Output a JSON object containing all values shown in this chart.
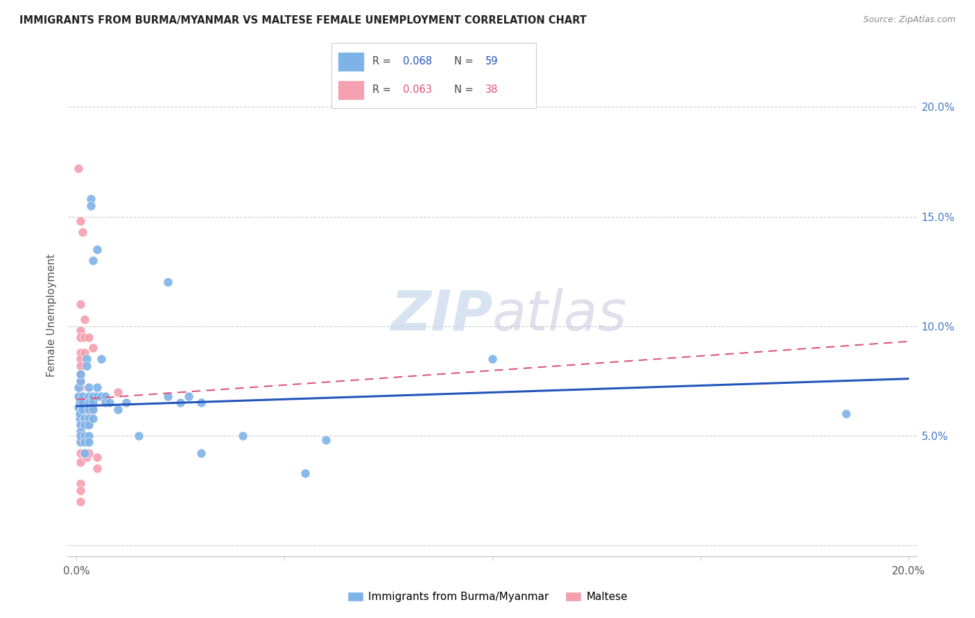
{
  "title": "IMMIGRANTS FROM BURMA/MYANMAR VS MALTESE FEMALE UNEMPLOYMENT CORRELATION CHART",
  "source": "Source: ZipAtlas.com",
  "ylabel": "Female Unemployment",
  "watermark_zip": "ZIP",
  "watermark_atlas": "atlas",
  "blue_color": "#7EB3E8",
  "pink_color": "#F4A0B0",
  "blue_line_color": "#2255BB",
  "pink_line_color": "#DD5577",
  "grid_color": "#CCCCCC",
  "blue_scatter": [
    [
      0.0005,
      0.063
    ],
    [
      0.0005,
      0.068
    ],
    [
      0.0005,
      0.072
    ],
    [
      0.0008,
      0.058
    ],
    [
      0.0008,
      0.065
    ],
    [
      0.0008,
      0.06
    ],
    [
      0.001,
      0.055
    ],
    [
      0.001,
      0.052
    ],
    [
      0.001,
      0.047
    ],
    [
      0.001,
      0.05
    ],
    [
      0.001,
      0.075
    ],
    [
      0.001,
      0.078
    ],
    [
      0.0015,
      0.068
    ],
    [
      0.0015,
      0.065
    ],
    [
      0.0015,
      0.062
    ],
    [
      0.002,
      0.058
    ],
    [
      0.002,
      0.055
    ],
    [
      0.002,
      0.042
    ],
    [
      0.002,
      0.05
    ],
    [
      0.002,
      0.047
    ],
    [
      0.0025,
      0.085
    ],
    [
      0.0025,
      0.082
    ],
    [
      0.003,
      0.072
    ],
    [
      0.003,
      0.068
    ],
    [
      0.003,
      0.065
    ],
    [
      0.003,
      0.062
    ],
    [
      0.003,
      0.058
    ],
    [
      0.003,
      0.055
    ],
    [
      0.003,
      0.05
    ],
    [
      0.003,
      0.047
    ],
    [
      0.0035,
      0.158
    ],
    [
      0.0035,
      0.155
    ],
    [
      0.004,
      0.068
    ],
    [
      0.004,
      0.065
    ],
    [
      0.004,
      0.062
    ],
    [
      0.004,
      0.058
    ],
    [
      0.004,
      0.13
    ],
    [
      0.005,
      0.068
    ],
    [
      0.005,
      0.072
    ],
    [
      0.005,
      0.135
    ],
    [
      0.006,
      0.085
    ],
    [
      0.006,
      0.068
    ],
    [
      0.007,
      0.068
    ],
    [
      0.007,
      0.065
    ],
    [
      0.008,
      0.065
    ],
    [
      0.01,
      0.062
    ],
    [
      0.012,
      0.065
    ],
    [
      0.015,
      0.05
    ],
    [
      0.022,
      0.12
    ],
    [
      0.022,
      0.068
    ],
    [
      0.025,
      0.065
    ],
    [
      0.027,
      0.068
    ],
    [
      0.03,
      0.065
    ],
    [
      0.04,
      0.05
    ],
    [
      0.06,
      0.048
    ],
    [
      0.1,
      0.085
    ],
    [
      0.185,
      0.06
    ],
    [
      0.03,
      0.042
    ],
    [
      0.055,
      0.033
    ]
  ],
  "pink_scatter": [
    [
      0.0005,
      0.172
    ],
    [
      0.001,
      0.148
    ],
    [
      0.001,
      0.11
    ],
    [
      0.001,
      0.098
    ],
    [
      0.001,
      0.095
    ],
    [
      0.001,
      0.088
    ],
    [
      0.001,
      0.085
    ],
    [
      0.001,
      0.082
    ],
    [
      0.001,
      0.078
    ],
    [
      0.001,
      0.075
    ],
    [
      0.001,
      0.072
    ],
    [
      0.001,
      0.068
    ],
    [
      0.001,
      0.065
    ],
    [
      0.001,
      0.06
    ],
    [
      0.001,
      0.058
    ],
    [
      0.001,
      0.055
    ],
    [
      0.001,
      0.052
    ],
    [
      0.001,
      0.048
    ],
    [
      0.001,
      0.042
    ],
    [
      0.001,
      0.038
    ],
    [
      0.001,
      0.028
    ],
    [
      0.001,
      0.025
    ],
    [
      0.001,
      0.02
    ],
    [
      0.0015,
      0.143
    ],
    [
      0.002,
      0.103
    ],
    [
      0.002,
      0.095
    ],
    [
      0.002,
      0.088
    ],
    [
      0.002,
      0.06
    ],
    [
      0.0025,
      0.04
    ],
    [
      0.003,
      0.095
    ],
    [
      0.003,
      0.06
    ],
    [
      0.003,
      0.055
    ],
    [
      0.003,
      0.042
    ],
    [
      0.004,
      0.09
    ],
    [
      0.004,
      0.062
    ],
    [
      0.005,
      0.04
    ],
    [
      0.005,
      0.035
    ],
    [
      0.01,
      0.07
    ]
  ],
  "blue_line": [
    [
      0.0,
      0.0635
    ],
    [
      0.2,
      0.076
    ]
  ],
  "pink_line": [
    [
      0.0,
      0.0665
    ],
    [
      0.2,
      0.093
    ]
  ],
  "xlim": [
    -0.002,
    0.202
  ],
  "ylim": [
    -0.005,
    0.215
  ],
  "xplot_min": 0.0,
  "xplot_max": 0.2,
  "yplot_ticks": [
    0.0,
    0.05,
    0.1,
    0.15,
    0.2
  ]
}
